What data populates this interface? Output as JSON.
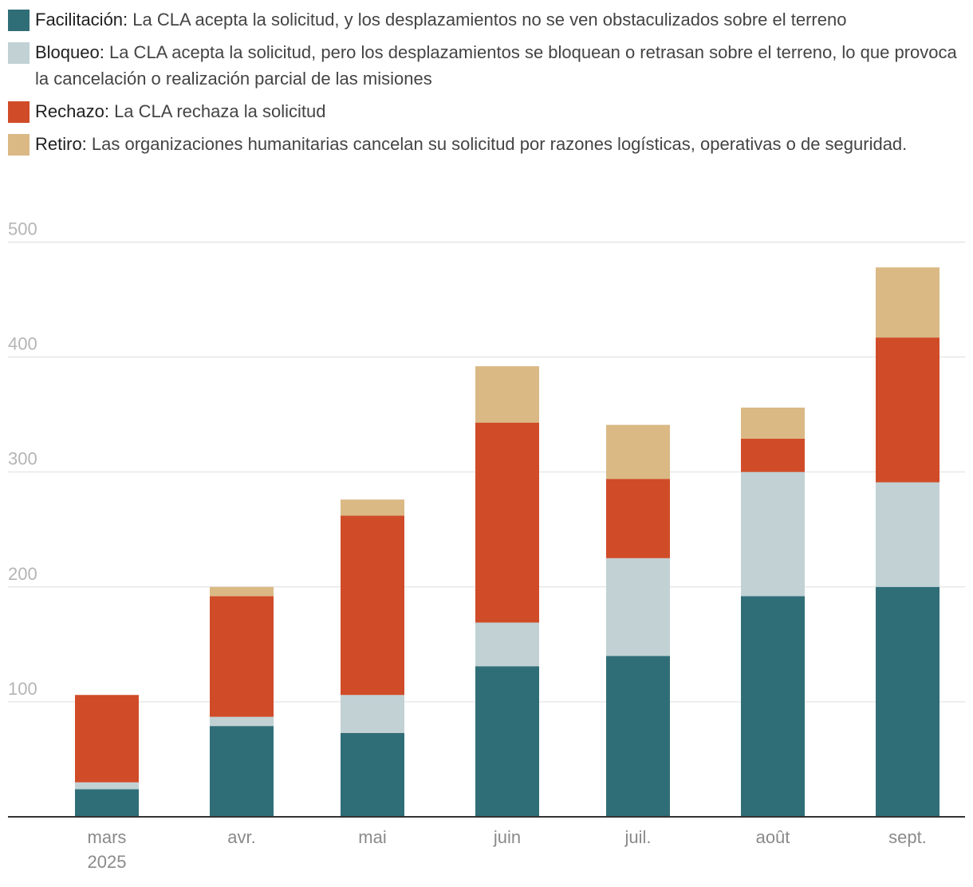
{
  "legend": [
    {
      "name": "Facilitación:",
      "desc": " La CLA acepta la solicitud, y los desplazamientos no se ven obstaculizados sobre el terreno",
      "color": "#306e77"
    },
    {
      "name": "Bloqueo:",
      "desc": " La CLA acepta la solicitud, pero los desplazamientos se bloquean o retrasan sobre el terreno, lo que provoca la cancelación o realización parcial de las misiones",
      "color": "#c1d1d4"
    },
    {
      "name": "Rechazo:",
      "desc": " La CLA rechaza la solicitud",
      "color": "#d04c28"
    },
    {
      "name": "Retiro:",
      "desc": " Las organizaciones humanitarias cancelan su solicitud por razones logísticas, operativas o de seguridad.",
      "color": "#dab985"
    }
  ],
  "chart_data": {
    "type": "bar",
    "stacked": true,
    "categories": [
      "mars",
      "avr.",
      "mai",
      "juin",
      "juil.",
      "août",
      "sept."
    ],
    "category_sublabels": [
      "2025",
      "",
      "",
      "",
      "",
      "",
      ""
    ],
    "series": [
      {
        "name": "Facilitación",
        "color": "#306e77",
        "values": [
          24,
          79,
          73,
          131,
          140,
          192,
          200
        ]
      },
      {
        "name": "Bloqueo",
        "color": "#c1d1d4",
        "values": [
          6,
          8,
          33,
          38,
          85,
          108,
          91
        ]
      },
      {
        "name": "Rechazo",
        "color": "#d04c28",
        "values": [
          76,
          105,
          156,
          174,
          69,
          29,
          126
        ]
      },
      {
        "name": "Retiro",
        "color": "#dab985",
        "values": [
          0,
          8,
          14,
          49,
          47,
          27,
          61
        ]
      }
    ],
    "ylim": [
      0,
      500
    ],
    "yticks": [
      100,
      200,
      300,
      400,
      500
    ],
    "grid": true,
    "legend_position": "top"
  }
}
